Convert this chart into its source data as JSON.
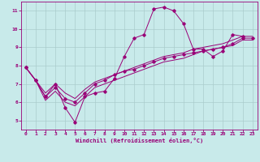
{
  "title": "",
  "xlabel": "Windchill (Refroidissement éolien,°C)",
  "ylabel": "",
  "background_color": "#c8eaea",
  "line_color": "#990077",
  "grid_color": "#aacccc",
  "xlim": [
    -0.5,
    23.5
  ],
  "ylim": [
    4.5,
    11.5
  ],
  "xticks": [
    0,
    1,
    2,
    3,
    4,
    5,
    6,
    7,
    8,
    9,
    10,
    11,
    12,
    13,
    14,
    15,
    16,
    17,
    18,
    19,
    20,
    21,
    22,
    23
  ],
  "yticks": [
    5,
    6,
    7,
    8,
    9,
    10,
    11
  ],
  "line1": {
    "x": [
      0,
      1,
      2,
      3,
      4,
      5,
      6,
      7,
      8,
      9,
      10,
      11,
      12,
      13,
      14,
      15,
      16,
      17,
      18,
      19,
      20,
      21,
      22
    ],
    "y": [
      7.9,
      7.2,
      6.3,
      7.0,
      5.7,
      4.9,
      6.3,
      6.5,
      6.6,
      7.3,
      8.5,
      9.5,
      9.7,
      11.1,
      11.2,
      11.0,
      10.3,
      8.9,
      8.9,
      8.5,
      8.8,
      9.7,
      9.6
    ]
  },
  "line2": {
    "x": [
      0,
      1,
      2,
      3,
      4,
      5,
      6,
      7,
      8,
      9,
      10,
      11,
      12,
      13,
      14,
      15,
      16,
      17,
      18,
      19,
      20,
      21,
      22,
      23
    ],
    "y": [
      7.9,
      7.2,
      6.3,
      6.8,
      6.2,
      6.0,
      6.5,
      7.0,
      7.2,
      7.5,
      7.7,
      7.8,
      8.0,
      8.2,
      8.4,
      8.5,
      8.6,
      8.7,
      8.8,
      8.9,
      9.0,
      9.2,
      9.5,
      9.5
    ]
  },
  "line3": {
    "x": [
      0,
      1,
      2,
      3,
      4,
      5,
      6,
      7,
      8,
      9,
      10,
      11,
      12,
      13,
      14,
      15,
      16,
      17,
      18,
      19,
      20,
      21,
      22,
      23
    ],
    "y": [
      7.9,
      7.2,
      6.5,
      7.0,
      6.5,
      6.2,
      6.7,
      7.1,
      7.3,
      7.5,
      7.7,
      7.9,
      8.1,
      8.3,
      8.5,
      8.6,
      8.7,
      8.9,
      9.0,
      9.1,
      9.2,
      9.4,
      9.6,
      9.6
    ]
  },
  "line4": {
    "x": [
      0,
      1,
      2,
      3,
      4,
      5,
      6,
      7,
      8,
      9,
      10,
      11,
      12,
      13,
      14,
      15,
      16,
      17,
      18,
      19,
      20,
      21,
      22,
      23
    ],
    "y": [
      7.9,
      7.2,
      6.1,
      6.6,
      6.0,
      5.8,
      6.3,
      6.8,
      7.0,
      7.2,
      7.4,
      7.6,
      7.8,
      8.0,
      8.2,
      8.3,
      8.4,
      8.6,
      8.8,
      8.9,
      9.0,
      9.1,
      9.4,
      9.4
    ]
  }
}
